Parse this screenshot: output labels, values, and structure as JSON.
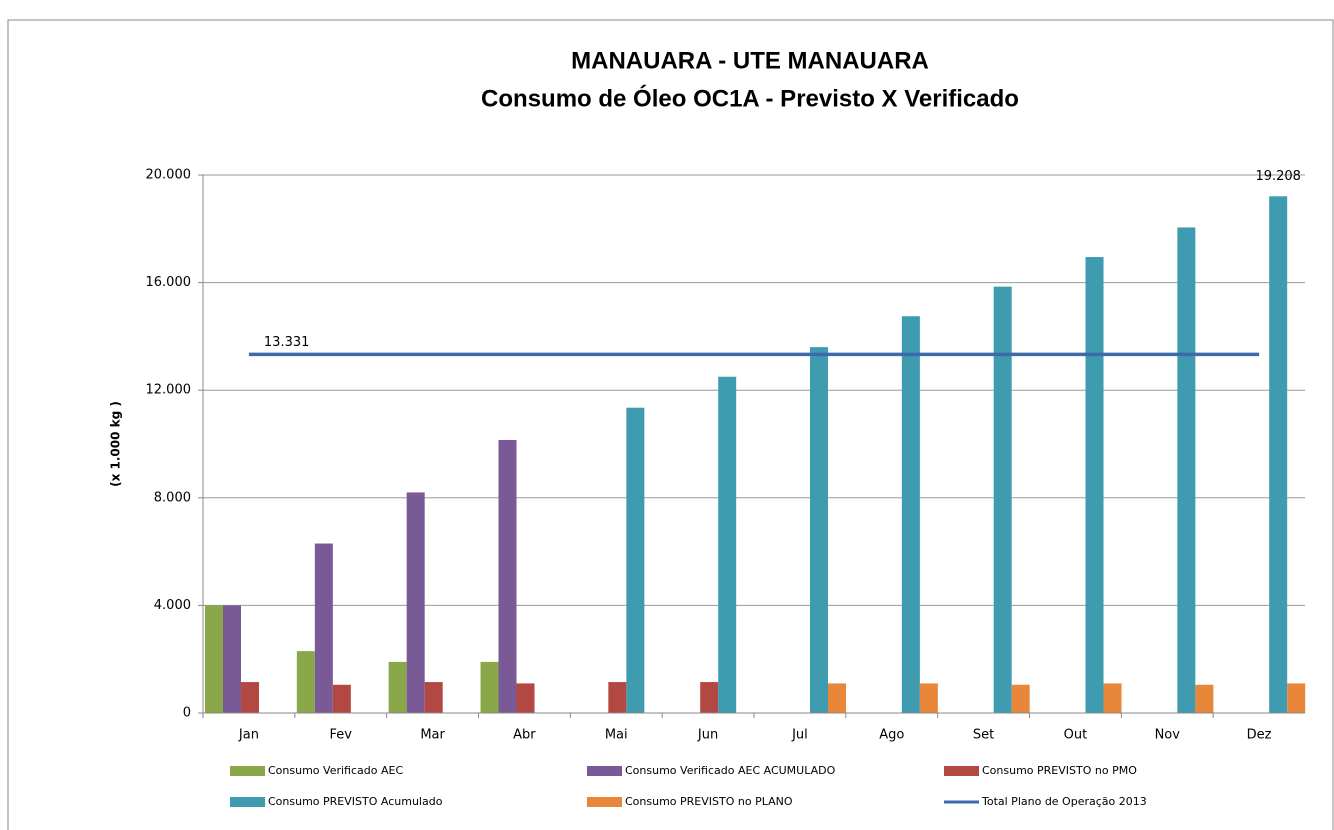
{
  "chart_data": {
    "type": "bar",
    "title": "MANAUARA - UTE MANAUARA",
    "subtitle": "Consumo de Óleo OC1A - Previsto X Verificado",
    "y_label": "(x 1.000 kg )",
    "categories": [
      "Jan",
      "Fev",
      "Mar",
      "Abr",
      "Mai",
      "Jun",
      "Jul",
      "Ago",
      "Set",
      "Out",
      "Nov",
      "Dez"
    ],
    "ylim": [
      0,
      20000
    ],
    "yticks": [
      {
        "value": 0,
        "label": "0"
      },
      {
        "value": 4000,
        "label": "4.000"
      },
      {
        "value": 8000,
        "label": "8.000"
      },
      {
        "value": 12000,
        "label": "12.000"
      },
      {
        "value": 16000,
        "label": "16.000"
      },
      {
        "value": 20000,
        "label": "20.000"
      }
    ],
    "grid": true,
    "legend": "bottom",
    "series": [
      {
        "name": "Consumo Verificado AEC",
        "color": "#8aa84a",
        "type": "bar",
        "values": [
          4000,
          2300,
          1900,
          1900,
          null,
          null,
          null,
          null,
          null,
          null,
          null,
          null
        ]
      },
      {
        "name": "Consumo Verificado AEC ACUMULADO",
        "color": "#7a5a96",
        "type": "bar",
        "values": [
          4000,
          6300,
          8200,
          10150,
          null,
          null,
          null,
          null,
          null,
          null,
          null,
          null
        ]
      },
      {
        "name": "Consumo PREVISTO no PMO",
        "color": "#b34742",
        "type": "bar",
        "values": [
          1150,
          1050,
          1150,
          1100,
          1150,
          1150,
          null,
          null,
          null,
          null,
          null,
          null
        ]
      },
      {
        "name": "Consumo PREVISTO Acumulado",
        "color": "#3f9bb0",
        "type": "bar",
        "values": [
          null,
          null,
          null,
          null,
          11350,
          12500,
          13600,
          14750,
          15850,
          16950,
          18050,
          19208
        ],
        "value_labels": [
          null,
          null,
          null,
          null,
          null,
          null,
          null,
          null,
          null,
          null,
          null,
          "19.208"
        ]
      },
      {
        "name": "Consumo PREVISTO no PLANO",
        "color": "#e8873a",
        "type": "bar",
        "values": [
          null,
          null,
          null,
          null,
          null,
          null,
          1100,
          1100,
          1050,
          1100,
          1050,
          1100
        ]
      },
      {
        "name": "Total Plano de Operação 2013",
        "color": "#3d6aa8",
        "type": "line",
        "values": [
          13331,
          13331,
          13331,
          13331,
          13331,
          13331,
          13331,
          13331,
          13331,
          13331,
          13331,
          13331
        ],
        "value_labels": [
          "13.331",
          null,
          null,
          null,
          null,
          null,
          null,
          null,
          null,
          null,
          null,
          null
        ]
      }
    ]
  }
}
